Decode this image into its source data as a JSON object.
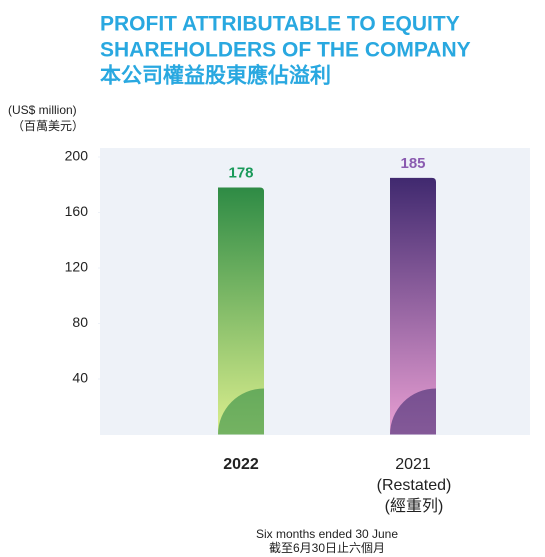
{
  "chart_data": {
    "type": "bar",
    "title": [
      "PROFIT ATTRIBUTABLE TO EQUITY",
      "SHAREHOLDERS OF THE COMPANY",
      "本公司權益股東應佔溢利"
    ],
    "y_label": [
      "(US$ million)",
      "（百萬美元）"
    ],
    "x_label": [
      "Six months ended 30 June",
      "截至6月30日止六個月"
    ],
    "categories": [
      "2022",
      "2021"
    ],
    "category_notes": [
      "(Restated)",
      "(經重列)"
    ],
    "values": [
      178,
      185
    ],
    "label_colors": [
      "#1a9a5a",
      "#8a5bb0"
    ],
    "gradients": [
      [
        "#2e8b45",
        "#dcef8e"
      ],
      [
        "#40296f",
        "#eaa0d4"
      ]
    ],
    "ylim": [
      0,
      200
    ],
    "yticks": [
      40,
      80,
      120,
      160,
      200
    ]
  }
}
